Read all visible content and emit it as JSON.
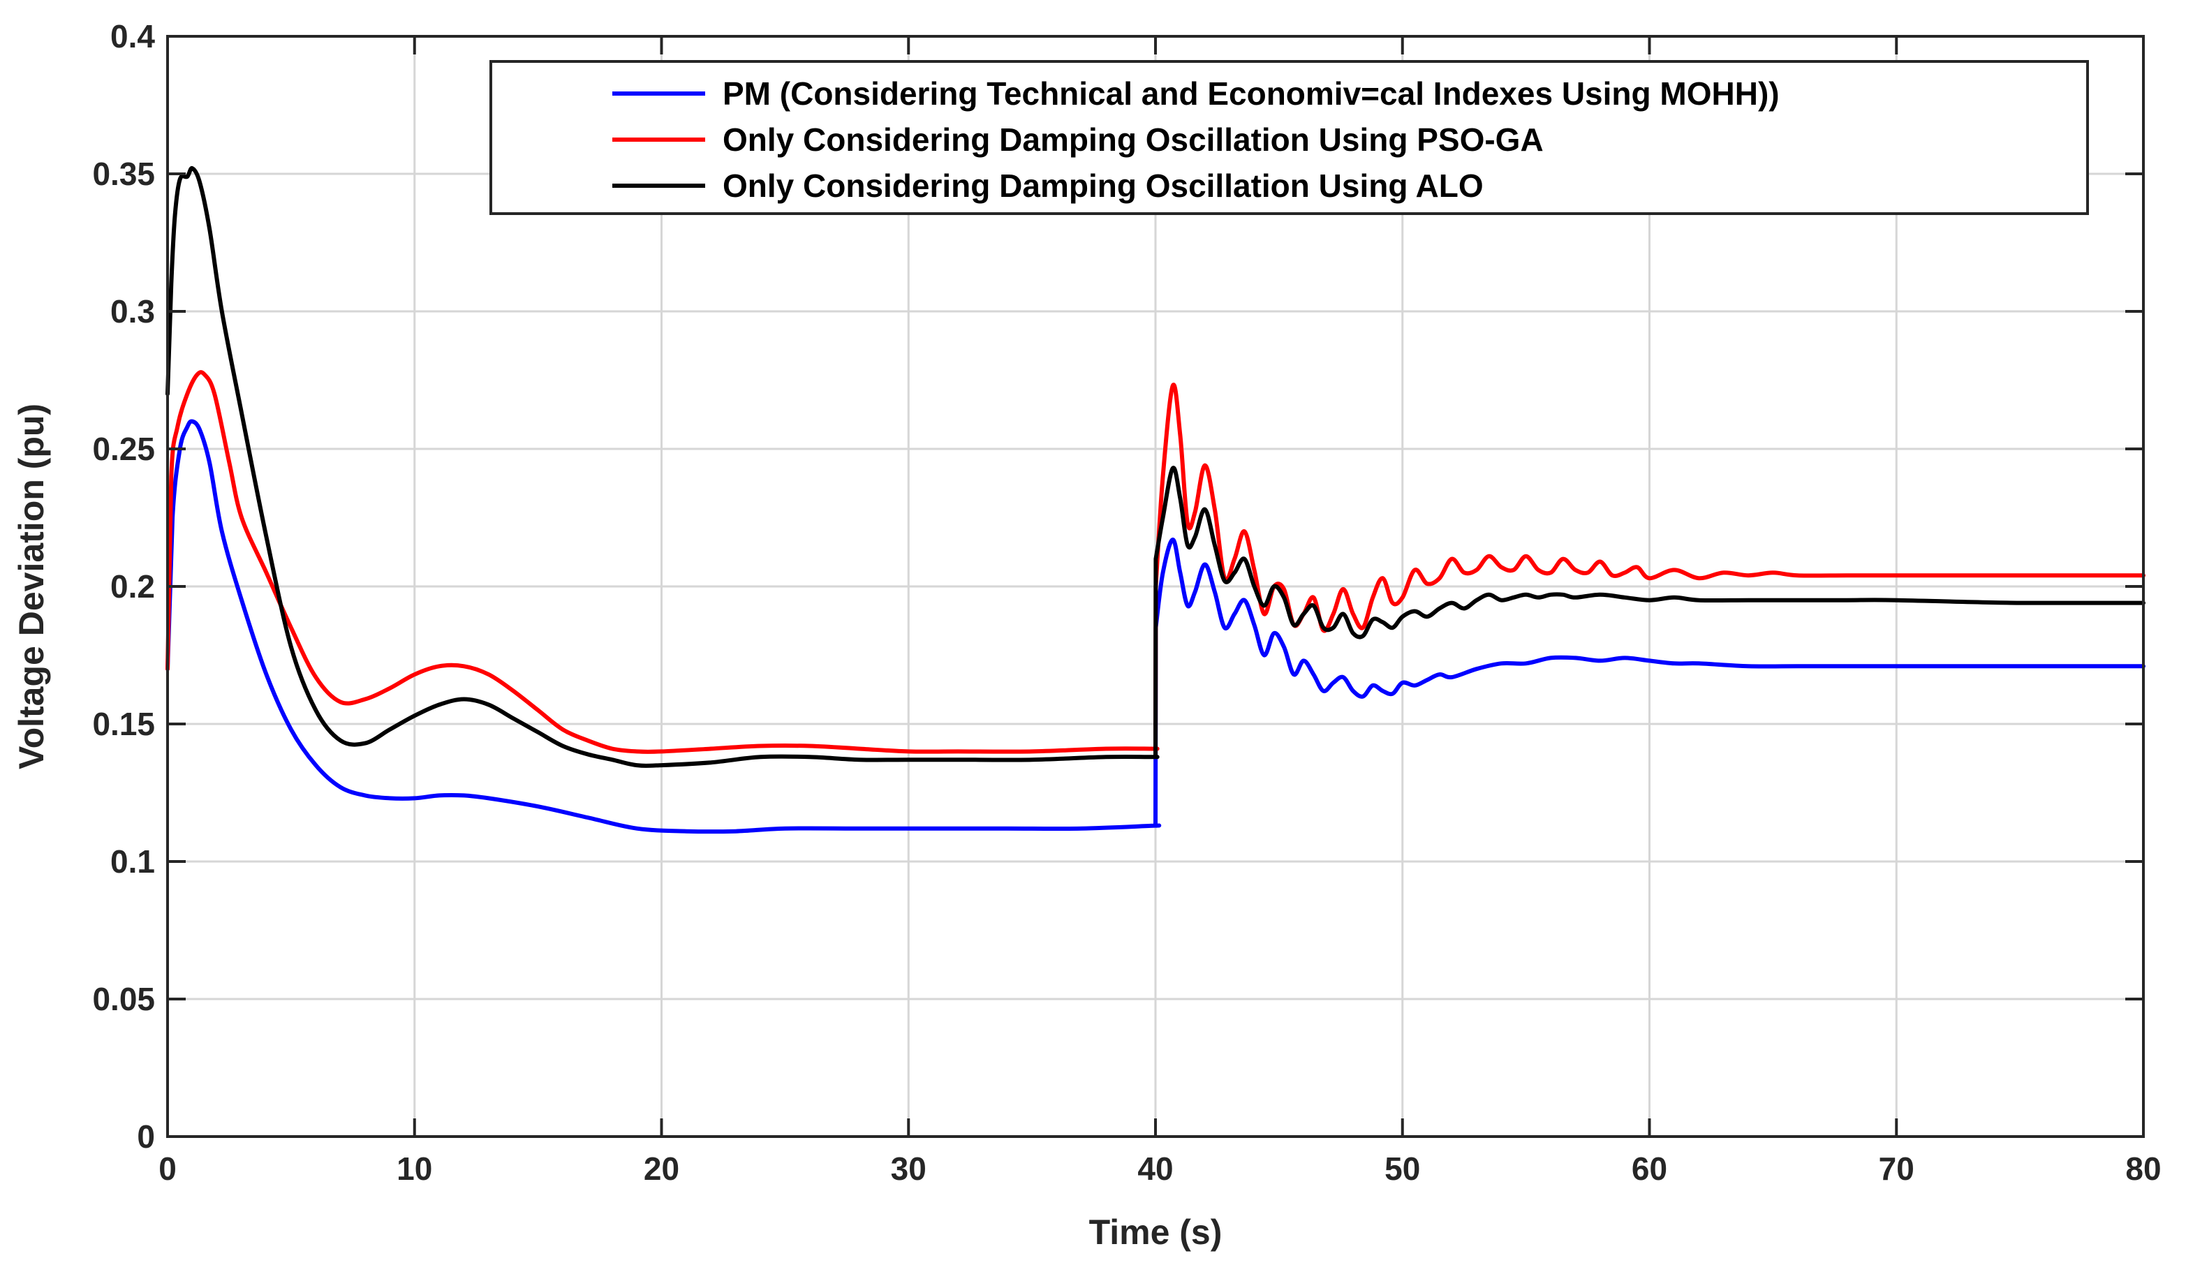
{
  "chart_data": {
    "type": "line",
    "title": "",
    "xlabel": "Time (s)",
    "ylabel": "Voltage Deviation (pu)",
    "xlim": [
      0,
      80
    ],
    "ylim": [
      0,
      0.4
    ],
    "grid": true,
    "legend_position": "top-right",
    "x_ticks": [
      0,
      10,
      20,
      30,
      40,
      50,
      60,
      70,
      80
    ],
    "x_tick_labels": [
      "0",
      "10",
      "20",
      "30",
      "40",
      "50",
      "60",
      "70",
      "80"
    ],
    "y_ticks": [
      0,
      0.05,
      0.1,
      0.15,
      0.2,
      0.25,
      0.3,
      0.35,
      0.4
    ],
    "y_tick_labels": [
      "0",
      "0.05",
      "0.1",
      "0.15",
      "0.2",
      "0.25",
      "0.3",
      "0.35",
      "0.4"
    ],
    "series": [
      {
        "name": "PM (Considering Technical and Economiv=cal Indexes Using MOHH))",
        "color": "#0000ff",
        "points": [
          [
            0,
            0.17
          ],
          [
            0.2,
            0.225
          ],
          [
            0.5,
            0.25
          ],
          [
            0.8,
            0.258
          ],
          [
            1.0,
            0.26
          ],
          [
            1.3,
            0.257
          ],
          [
            1.7,
            0.245
          ],
          [
            2.2,
            0.22
          ],
          [
            3,
            0.195
          ],
          [
            4,
            0.168
          ],
          [
            5,
            0.148
          ],
          [
            6,
            0.135
          ],
          [
            7,
            0.127
          ],
          [
            8,
            0.124
          ],
          [
            9,
            0.123
          ],
          [
            10,
            0.123
          ],
          [
            11,
            0.124
          ],
          [
            12,
            0.124
          ],
          [
            13,
            0.123
          ],
          [
            15,
            0.12
          ],
          [
            17,
            0.116
          ],
          [
            19,
            0.112
          ],
          [
            21,
            0.111
          ],
          [
            23,
            0.111
          ],
          [
            25,
            0.112
          ],
          [
            28,
            0.112
          ],
          [
            31,
            0.112
          ],
          [
            34,
            0.112
          ],
          [
            37,
            0.112
          ],
          [
            39.9,
            0.113
          ],
          [
            40,
            0.113
          ],
          [
            40.01,
            0.185
          ],
          [
            40.3,
            0.205
          ],
          [
            40.7,
            0.217
          ],
          [
            41.0,
            0.205
          ],
          [
            41.3,
            0.193
          ],
          [
            41.6,
            0.198
          ],
          [
            42.0,
            0.208
          ],
          [
            42.4,
            0.198
          ],
          [
            42.8,
            0.185
          ],
          [
            43.2,
            0.19
          ],
          [
            43.6,
            0.195
          ],
          [
            44.0,
            0.186
          ],
          [
            44.4,
            0.175
          ],
          [
            44.8,
            0.183
          ],
          [
            45.2,
            0.178
          ],
          [
            45.6,
            0.168
          ],
          [
            46.0,
            0.173
          ],
          [
            46.4,
            0.168
          ],
          [
            46.8,
            0.162
          ],
          [
            47.2,
            0.165
          ],
          [
            47.6,
            0.167
          ],
          [
            48.0,
            0.162
          ],
          [
            48.4,
            0.16
          ],
          [
            48.8,
            0.164
          ],
          [
            49.2,
            0.162
          ],
          [
            49.6,
            0.161
          ],
          [
            50.0,
            0.165
          ],
          [
            50.5,
            0.164
          ],
          [
            51.0,
            0.166
          ],
          [
            51.5,
            0.168
          ],
          [
            52.0,
            0.167
          ],
          [
            53,
            0.17
          ],
          [
            54,
            0.172
          ],
          [
            55,
            0.172
          ],
          [
            56,
            0.174
          ],
          [
            57,
            0.174
          ],
          [
            58,
            0.173
          ],
          [
            59,
            0.174
          ],
          [
            60,
            0.173
          ],
          [
            61,
            0.172
          ],
          [
            62,
            0.172
          ],
          [
            64,
            0.171
          ],
          [
            66,
            0.171
          ],
          [
            70,
            0.171
          ],
          [
            75,
            0.171
          ],
          [
            80,
            0.171
          ]
        ]
      },
      {
        "name": "Only Considering Damping Oscillation Using PSO-GA",
        "color": "#ff0000",
        "points": [
          [
            0,
            0.17
          ],
          [
            0.15,
            0.24
          ],
          [
            0.4,
            0.258
          ],
          [
            0.8,
            0.27
          ],
          [
            1.2,
            0.277
          ],
          [
            1.5,
            0.277
          ],
          [
            1.9,
            0.27
          ],
          [
            2.5,
            0.245
          ],
          [
            3,
            0.225
          ],
          [
            4,
            0.205
          ],
          [
            5,
            0.185
          ],
          [
            6,
            0.167
          ],
          [
            7,
            0.158
          ],
          [
            8,
            0.159
          ],
          [
            9,
            0.163
          ],
          [
            10,
            0.168
          ],
          [
            11,
            0.171
          ],
          [
            12,
            0.171
          ],
          [
            13,
            0.168
          ],
          [
            14,
            0.162
          ],
          [
            15,
            0.155
          ],
          [
            16,
            0.148
          ],
          [
            17,
            0.144
          ],
          [
            18,
            0.141
          ],
          [
            19,
            0.14
          ],
          [
            20,
            0.14
          ],
          [
            22,
            0.141
          ],
          [
            24,
            0.142
          ],
          [
            26,
            0.142
          ],
          [
            28,
            0.141
          ],
          [
            30,
            0.14
          ],
          [
            32,
            0.14
          ],
          [
            35,
            0.14
          ],
          [
            38,
            0.141
          ],
          [
            39.9,
            0.141
          ],
          [
            40,
            0.141
          ],
          [
            40.01,
            0.2
          ],
          [
            40.3,
            0.24
          ],
          [
            40.7,
            0.273
          ],
          [
            41.0,
            0.255
          ],
          [
            41.3,
            0.223
          ],
          [
            41.6,
            0.227
          ],
          [
            42.0,
            0.244
          ],
          [
            42.4,
            0.228
          ],
          [
            42.8,
            0.203
          ],
          [
            43.2,
            0.21
          ],
          [
            43.6,
            0.22
          ],
          [
            44.0,
            0.206
          ],
          [
            44.4,
            0.19
          ],
          [
            44.8,
            0.2
          ],
          [
            45.2,
            0.199
          ],
          [
            45.6,
            0.186
          ],
          [
            46.0,
            0.19
          ],
          [
            46.4,
            0.196
          ],
          [
            46.8,
            0.184
          ],
          [
            47.2,
            0.19
          ],
          [
            47.6,
            0.199
          ],
          [
            48.0,
            0.19
          ],
          [
            48.4,
            0.185
          ],
          [
            48.8,
            0.196
          ],
          [
            49.2,
            0.203
          ],
          [
            49.6,
            0.194
          ],
          [
            50.0,
            0.196
          ],
          [
            50.5,
            0.206
          ],
          [
            51.0,
            0.201
          ],
          [
            51.5,
            0.203
          ],
          [
            52.0,
            0.21
          ],
          [
            52.5,
            0.205
          ],
          [
            53.0,
            0.206
          ],
          [
            53.5,
            0.211
          ],
          [
            54.0,
            0.207
          ],
          [
            54.5,
            0.206
          ],
          [
            55.0,
            0.211
          ],
          [
            55.5,
            0.206
          ],
          [
            56.0,
            0.205
          ],
          [
            56.5,
            0.21
          ],
          [
            57.0,
            0.206
          ],
          [
            57.5,
            0.205
          ],
          [
            58.0,
            0.209
          ],
          [
            58.5,
            0.204
          ],
          [
            59,
            0.205
          ],
          [
            59.5,
            0.207
          ],
          [
            60,
            0.203
          ],
          [
            61,
            0.206
          ],
          [
            62,
            0.203
          ],
          [
            63,
            0.205
          ],
          [
            64,
            0.204
          ],
          [
            65,
            0.205
          ],
          [
            66,
            0.204
          ],
          [
            68,
            0.204
          ],
          [
            70,
            0.204
          ],
          [
            75,
            0.204
          ],
          [
            80,
            0.204
          ]
        ]
      },
      {
        "name": "Only Considering Damping Oscillation Using ALO",
        "color": "#000000",
        "points": [
          [
            0,
            0.27
          ],
          [
            0.15,
            0.31
          ],
          [
            0.3,
            0.335
          ],
          [
            0.5,
            0.348
          ],
          [
            0.8,
            0.349
          ],
          [
            1.0,
            0.352
          ],
          [
            1.3,
            0.347
          ],
          [
            1.7,
            0.33
          ],
          [
            2.2,
            0.3
          ],
          [
            3,
            0.263
          ],
          [
            4,
            0.218
          ],
          [
            5,
            0.178
          ],
          [
            6,
            0.155
          ],
          [
            7,
            0.144
          ],
          [
            8,
            0.143
          ],
          [
            9,
            0.148
          ],
          [
            10,
            0.153
          ],
          [
            11,
            0.157
          ],
          [
            12,
            0.159
          ],
          [
            13,
            0.157
          ],
          [
            14,
            0.152
          ],
          [
            15,
            0.147
          ],
          [
            16,
            0.142
          ],
          [
            17,
            0.139
          ],
          [
            18,
            0.137
          ],
          [
            19,
            0.135
          ],
          [
            20,
            0.135
          ],
          [
            22,
            0.136
          ],
          [
            24,
            0.138
          ],
          [
            26,
            0.138
          ],
          [
            28,
            0.137
          ],
          [
            30,
            0.137
          ],
          [
            32,
            0.137
          ],
          [
            35,
            0.137
          ],
          [
            38,
            0.138
          ],
          [
            39.9,
            0.138
          ],
          [
            40,
            0.138
          ],
          [
            40.01,
            0.21
          ],
          [
            40.3,
            0.225
          ],
          [
            40.7,
            0.243
          ],
          [
            41.0,
            0.232
          ],
          [
            41.3,
            0.215
          ],
          [
            41.6,
            0.218
          ],
          [
            42.0,
            0.228
          ],
          [
            42.4,
            0.215
          ],
          [
            42.8,
            0.202
          ],
          [
            43.2,
            0.205
          ],
          [
            43.6,
            0.21
          ],
          [
            44.0,
            0.2
          ],
          [
            44.4,
            0.193
          ],
          [
            44.8,
            0.2
          ],
          [
            45.2,
            0.196
          ],
          [
            45.6,
            0.186
          ],
          [
            46.0,
            0.19
          ],
          [
            46.4,
            0.193
          ],
          [
            46.8,
            0.185
          ],
          [
            47.2,
            0.185
          ],
          [
            47.6,
            0.19
          ],
          [
            48.0,
            0.183
          ],
          [
            48.4,
            0.182
          ],
          [
            48.8,
            0.188
          ],
          [
            49.2,
            0.187
          ],
          [
            49.6,
            0.185
          ],
          [
            50.0,
            0.189
          ],
          [
            50.5,
            0.191
          ],
          [
            51.0,
            0.189
          ],
          [
            51.5,
            0.192
          ],
          [
            52.0,
            0.194
          ],
          [
            52.5,
            0.192
          ],
          [
            53.0,
            0.195
          ],
          [
            53.5,
            0.197
          ],
          [
            54.0,
            0.195
          ],
          [
            54.5,
            0.196
          ],
          [
            55.0,
            0.197
          ],
          [
            55.5,
            0.196
          ],
          [
            56.0,
            0.197
          ],
          [
            56.5,
            0.197
          ],
          [
            57.0,
            0.196
          ],
          [
            58,
            0.197
          ],
          [
            59,
            0.196
          ],
          [
            60,
            0.195
          ],
          [
            61,
            0.196
          ],
          [
            62,
            0.195
          ],
          [
            64,
            0.195
          ],
          [
            66,
            0.195
          ],
          [
            68,
            0.195
          ],
          [
            70,
            0.195
          ],
          [
            75,
            0.194
          ],
          [
            80,
            0.194
          ]
        ]
      }
    ]
  }
}
